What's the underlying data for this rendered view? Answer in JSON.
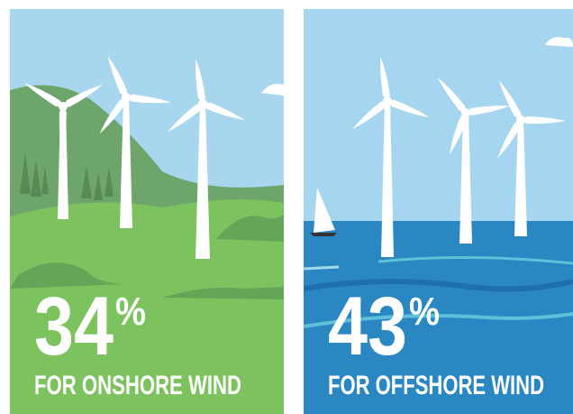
{
  "panels": [
    {
      "value": "34",
      "unit": "%",
      "caption": "FOR ONSHORE WIND"
    },
    {
      "value": "43",
      "unit": "%",
      "caption": "FOR OFFSHORE WIND"
    }
  ]
}
